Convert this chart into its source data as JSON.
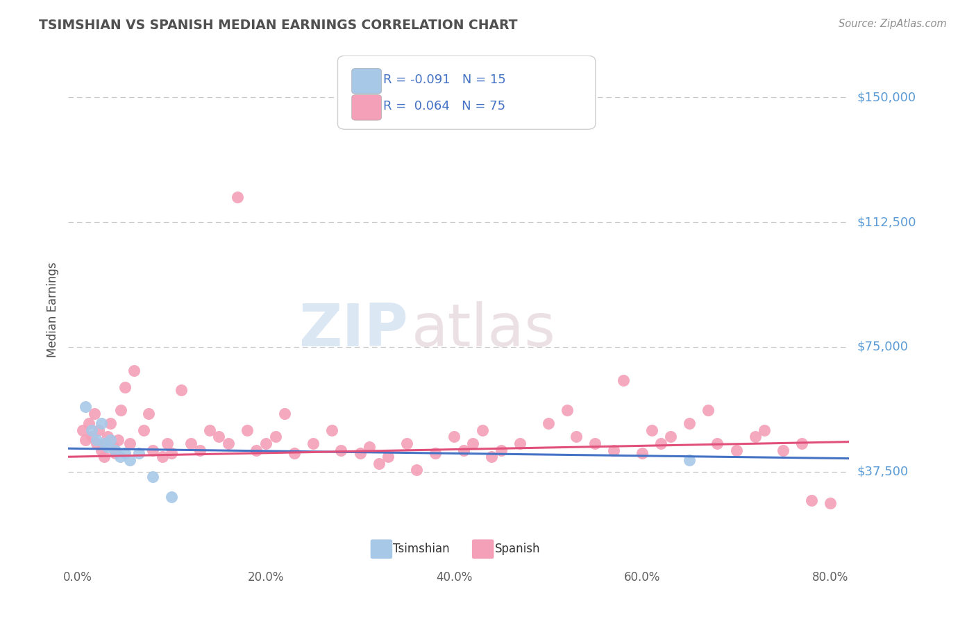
{
  "title": "TSIMSHIAN VS SPANISH MEDIAN EARNINGS CORRELATION CHART",
  "source_text": "Source: ZipAtlas.com",
  "ylabel": "Median Earnings",
  "xlabel_ticks": [
    "0.0%",
    "20.0%",
    "40.0%",
    "60.0%",
    "80.0%"
  ],
  "xlabel_vals": [
    0.0,
    20.0,
    40.0,
    60.0,
    80.0
  ],
  "ytick_labels": [
    "$37,500",
    "$75,000",
    "$112,500",
    "$150,000"
  ],
  "ytick_vals": [
    37500,
    75000,
    112500,
    150000
  ],
  "ylim": [
    10000,
    162500
  ],
  "xlim": [
    -1,
    82
  ],
  "tsimshian_R": -0.091,
  "tsimshian_N": 15,
  "spanish_R": 0.064,
  "spanish_N": 75,
  "tsimshian_color": "#a8c8e8",
  "tsimshian_line_color": "#4472c4",
  "spanish_color": "#f4a0b8",
  "spanish_line_color": "#e0507a",
  "grid_color": "#c8c8c8",
  "background_color": "#ffffff",
  "title_color": "#505050",
  "axis_label_color": "#505050",
  "ytick_color": "#5b9bd5",
  "xtick_color": "#606060",
  "source_color": "#909090",
  "legend_R_color": "#4472c4",
  "legend_N_color": "#4472c4",
  "legend_text_color": "#333333",
  "tsimshian_x": [
    0.8,
    1.5,
    2.0,
    2.5,
    2.8,
    3.2,
    3.5,
    4.0,
    4.5,
    5.0,
    5.5,
    6.5,
    8.0,
    10.0,
    65.0
  ],
  "tsimshian_y": [
    57000,
    50000,
    47000,
    52000,
    46000,
    45000,
    47000,
    44000,
    42000,
    43000,
    41000,
    43000,
    36000,
    30000,
    41000
  ],
  "spanish_x": [
    0.5,
    0.8,
    1.2,
    1.5,
    1.8,
    2.0,
    2.2,
    2.5,
    2.8,
    3.0,
    3.2,
    3.5,
    3.8,
    4.0,
    4.3,
    4.6,
    5.0,
    5.5,
    6.0,
    7.0,
    7.5,
    8.0,
    9.0,
    9.5,
    10.0,
    11.0,
    12.0,
    13.0,
    14.0,
    15.0,
    16.0,
    17.0,
    18.0,
    19.0,
    20.0,
    21.0,
    22.0,
    23.0,
    25.0,
    27.0,
    28.0,
    30.0,
    31.0,
    32.0,
    33.0,
    35.0,
    36.0,
    38.0,
    40.0,
    41.0,
    42.0,
    43.0,
    44.0,
    45.0,
    47.0,
    50.0,
    52.0,
    53.0,
    55.0,
    57.0,
    58.0,
    60.0,
    61.0,
    62.0,
    63.0,
    65.0,
    67.0,
    68.0,
    70.0,
    72.0,
    73.0,
    75.0,
    77.0,
    78.0,
    80.0
  ],
  "spanish_y": [
    50000,
    47000,
    52000,
    48000,
    55000,
    46000,
    50000,
    44000,
    42000,
    46000,
    48000,
    52000,
    45000,
    43000,
    47000,
    56000,
    63000,
    46000,
    68000,
    50000,
    55000,
    44000,
    42000,
    46000,
    43000,
    62000,
    46000,
    44000,
    50000,
    48000,
    46000,
    120000,
    50000,
    44000,
    46000,
    48000,
    55000,
    43000,
    46000,
    50000,
    44000,
    43000,
    45000,
    40000,
    42000,
    46000,
    38000,
    43000,
    48000,
    44000,
    46000,
    50000,
    42000,
    44000,
    46000,
    52000,
    56000,
    48000,
    46000,
    44000,
    65000,
    43000,
    50000,
    46000,
    48000,
    52000,
    56000,
    46000,
    44000,
    48000,
    50000,
    44000,
    46000,
    29000,
    28000
  ],
  "tsimshian_trend": [
    43800,
    43100
  ],
  "spanish_trend": [
    41500,
    45000
  ],
  "watermark_zip_color": "#c8d8ec",
  "watermark_atlas_color": "#d0c0c8"
}
